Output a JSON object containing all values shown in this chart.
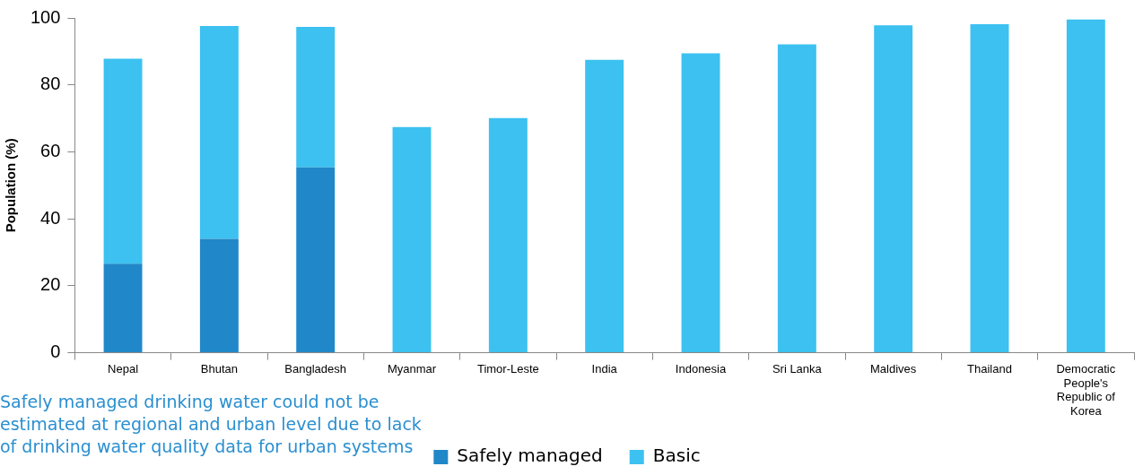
{
  "chart_data": {
    "type": "bar",
    "stacked": true,
    "ylabel": "Population (%)",
    "categories": [
      "Nepal",
      "Bhutan",
      "Bangladesh",
      "Myanmar",
      "Timor-Leste",
      "India",
      "Indonesia",
      "Sri Lanka",
      "Maldives",
      "Thailand",
      "Democratic People's Republic of Korea"
    ],
    "series": [
      {
        "name": "Safely managed",
        "color": "#2088c8",
        "values": [
          26.6,
          34,
          55.4,
          null,
          null,
          null,
          null,
          null,
          null,
          null,
          null
        ]
      },
      {
        "name": "Basic",
        "color": "#3cc1f0",
        "values": [
          61.2,
          63.6,
          41.9,
          67.4,
          70.1,
          87.5,
          89.4,
          92.1,
          97.8,
          98.1,
          99.5
        ]
      }
    ],
    "ylim": [
      0,
      100
    ],
    "yticks": [
      0,
      20,
      40,
      60,
      80,
      100
    ],
    "grid": false,
    "legend": "bottom",
    "annotations": [
      "Safely managed drinking water could not be estimated at regional and urban level due to lack of drinking water quality data for urban systems"
    ]
  }
}
